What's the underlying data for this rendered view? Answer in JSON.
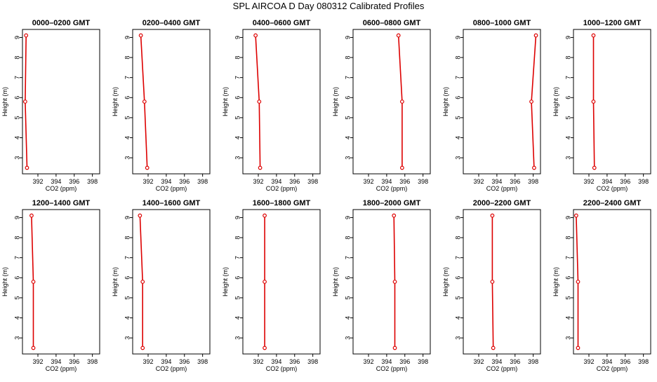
{
  "title": "SPL AIRCOA D  Day 080312  Calibrated Profiles",
  "chart_data": [
    {
      "type": "line",
      "title": "0000–0200 GMT",
      "xlabel": "CO2 (ppm)",
      "ylabel": "Height (m)",
      "xlim": [
        390.3,
        398.8
      ],
      "ylim": [
        2.2,
        9.4
      ],
      "xticks": [
        392,
        394,
        396,
        398
      ],
      "yticks": [
        3,
        4,
        5,
        6,
        7,
        8,
        9
      ],
      "x": [
        390.7,
        390.6,
        390.8
      ],
      "y": [
        9.1,
        5.8,
        2.5
      ],
      "series_color": "#dd0000"
    },
    {
      "type": "line",
      "title": "0200–0400 GMT",
      "xlabel": "CO2 (ppm)",
      "ylabel": "Height (m)",
      "xlim": [
        390.3,
        398.8
      ],
      "ylim": [
        2.2,
        9.4
      ],
      "xticks": [
        392,
        394,
        396,
        398
      ],
      "yticks": [
        3,
        4,
        5,
        6,
        7,
        8,
        9
      ],
      "x": [
        391.2,
        391.6,
        391.9
      ],
      "y": [
        9.1,
        5.8,
        2.5
      ],
      "series_color": "#dd0000"
    },
    {
      "type": "line",
      "title": "0400–0600 GMT",
      "xlabel": "CO2 (ppm)",
      "ylabel": "Height (m)",
      "xlim": [
        390.3,
        398.8
      ],
      "ylim": [
        2.2,
        9.4
      ],
      "xticks": [
        392,
        394,
        396,
        398
      ],
      "yticks": [
        3,
        4,
        5,
        6,
        7,
        8,
        9
      ],
      "x": [
        391.7,
        392.1,
        392.2
      ],
      "y": [
        9.1,
        5.8,
        2.5
      ],
      "series_color": "#dd0000"
    },
    {
      "type": "line",
      "title": "0600–0800 GMT",
      "xlabel": "CO2 (ppm)",
      "ylabel": "Height (m)",
      "xlim": [
        390.3,
        398.8
      ],
      "ylim": [
        2.2,
        9.4
      ],
      "xticks": [
        392,
        394,
        396,
        398
      ],
      "yticks": [
        3,
        4,
        5,
        6,
        7,
        8,
        9
      ],
      "x": [
        395.3,
        395.7,
        395.7
      ],
      "y": [
        9.1,
        5.8,
        2.5
      ],
      "series_color": "#dd0000"
    },
    {
      "type": "line",
      "title": "0800–1000 GMT",
      "xlabel": "CO2 (ppm)",
      "ylabel": "Height (m)",
      "xlim": [
        390.3,
        398.8
      ],
      "ylim": [
        2.2,
        9.4
      ],
      "xticks": [
        392,
        394,
        396,
        398
      ],
      "yticks": [
        3,
        4,
        5,
        6,
        7,
        8,
        9
      ],
      "x": [
        398.3,
        397.8,
        398.1
      ],
      "y": [
        9.1,
        5.8,
        2.5
      ],
      "series_color": "#dd0000"
    },
    {
      "type": "line",
      "title": "1000–1200 GMT",
      "xlabel": "CO2 (ppm)",
      "ylabel": "Height (m)",
      "xlim": [
        390.3,
        398.8
      ],
      "ylim": [
        2.2,
        9.4
      ],
      "xticks": [
        392,
        394,
        396,
        398
      ],
      "yticks": [
        3,
        4,
        5,
        6,
        7,
        8,
        9
      ],
      "x": [
        392.5,
        392.5,
        392.6
      ],
      "y": [
        9.1,
        5.8,
        2.5
      ],
      "series_color": "#dd0000"
    },
    {
      "type": "line",
      "title": "1200–1400 GMT",
      "xlabel": "CO2 (ppm)",
      "ylabel": "Height (m)",
      "xlim": [
        390.3,
        398.8
      ],
      "ylim": [
        2.2,
        9.4
      ],
      "xticks": [
        392,
        394,
        396,
        398
      ],
      "yticks": [
        3,
        4,
        5,
        6,
        7,
        8,
        9
      ],
      "x": [
        391.3,
        391.5,
        391.5
      ],
      "y": [
        9.1,
        5.8,
        2.5
      ],
      "series_color": "#dd0000"
    },
    {
      "type": "line",
      "title": "1400–1600 GMT",
      "xlabel": "CO2 (ppm)",
      "ylabel": "Height (m)",
      "xlim": [
        390.3,
        398.8
      ],
      "ylim": [
        2.2,
        9.4
      ],
      "xticks": [
        392,
        394,
        396,
        398
      ],
      "yticks": [
        3,
        4,
        5,
        6,
        7,
        8,
        9
      ],
      "x": [
        391.1,
        391.4,
        391.4
      ],
      "y": [
        9.1,
        5.8,
        2.5
      ],
      "series_color": "#dd0000"
    },
    {
      "type": "line",
      "title": "1600–1800 GMT",
      "xlabel": "CO2 (ppm)",
      "ylabel": "Height (m)",
      "xlim": [
        390.3,
        398.8
      ],
      "ylim": [
        2.2,
        9.4
      ],
      "xticks": [
        392,
        394,
        396,
        398
      ],
      "yticks": [
        3,
        4,
        5,
        6,
        7,
        8,
        9
      ],
      "x": [
        392.7,
        392.7,
        392.7
      ],
      "y": [
        9.1,
        5.8,
        2.5
      ],
      "series_color": "#dd0000"
    },
    {
      "type": "line",
      "title": "1800–2000 GMT",
      "xlabel": "CO2 (ppm)",
      "ylabel": "Height (m)",
      "xlim": [
        390.3,
        398.8
      ],
      "ylim": [
        2.2,
        9.4
      ],
      "xticks": [
        392,
        394,
        396,
        398
      ],
      "yticks": [
        3,
        4,
        5,
        6,
        7,
        8,
        9
      ],
      "x": [
        394.8,
        394.9,
        394.9
      ],
      "y": [
        9.1,
        5.8,
        2.5
      ],
      "series_color": "#dd0000"
    },
    {
      "type": "line",
      "title": "2000–2200 GMT",
      "xlabel": "CO2 (ppm)",
      "ylabel": "Height (m)",
      "xlim": [
        390.3,
        398.8
      ],
      "ylim": [
        2.2,
        9.4
      ],
      "xticks": [
        392,
        394,
        396,
        398
      ],
      "yticks": [
        3,
        4,
        5,
        6,
        7,
        8,
        9
      ],
      "x": [
        393.5,
        393.5,
        393.6
      ],
      "y": [
        9.1,
        5.8,
        2.5
      ],
      "series_color": "#dd0000"
    },
    {
      "type": "line",
      "title": "2200–2400 GMT",
      "xlabel": "CO2 (ppm)",
      "ylabel": "Height (m)",
      "xlim": [
        390.3,
        398.8
      ],
      "ylim": [
        2.2,
        9.4
      ],
      "xticks": [
        392,
        394,
        396,
        398
      ],
      "yticks": [
        3,
        4,
        5,
        6,
        7,
        8,
        9
      ],
      "x": [
        390.6,
        390.8,
        390.8
      ],
      "y": [
        9.1,
        5.8,
        2.5
      ],
      "series_color": "#dd0000"
    }
  ]
}
